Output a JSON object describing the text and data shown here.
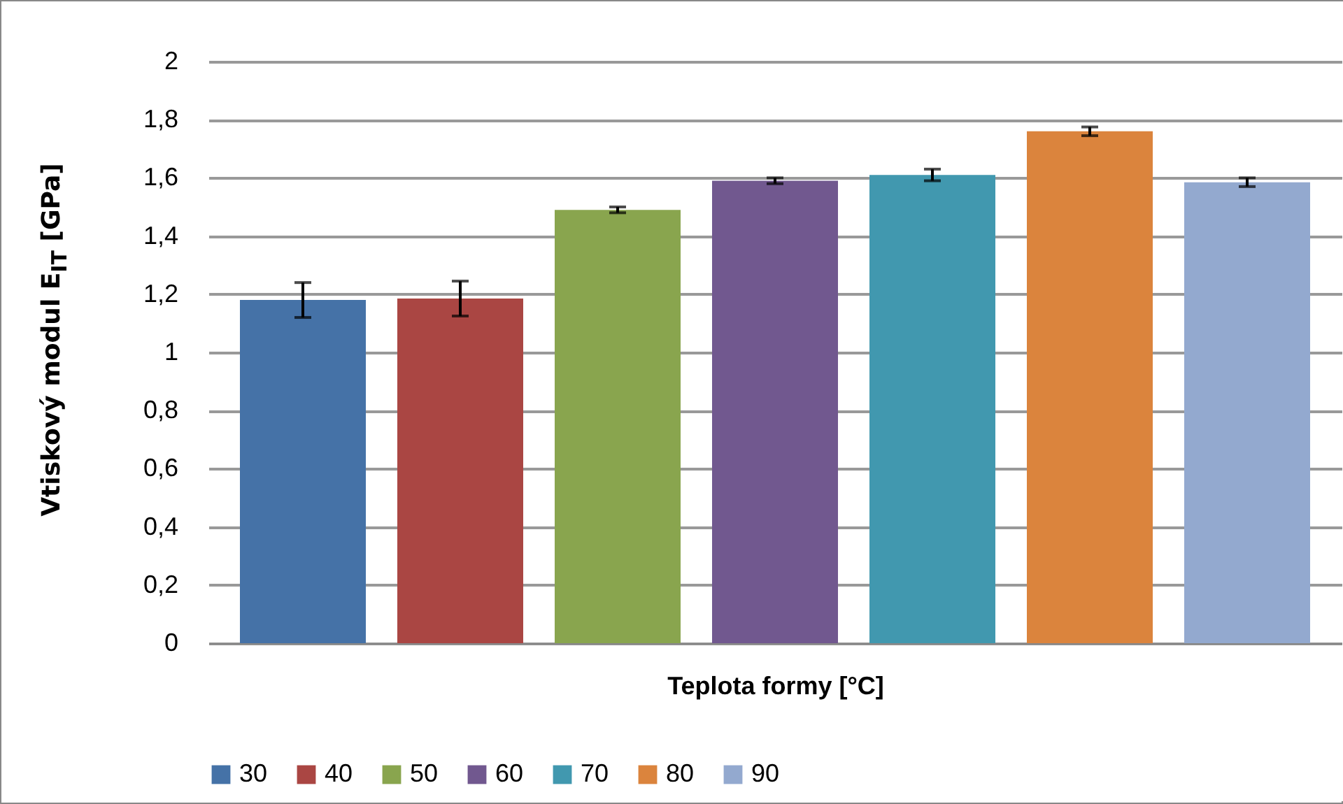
{
  "chart_data": {
    "type": "bar",
    "xlabel": "Teplota formy [°C]",
    "ylabel": "Vtiskový modul E$_{IT}$ [GPa]",
    "categories": [
      null
    ],
    "series": [
      {
        "name": "30",
        "color": "#4572a7",
        "values": [
          1.18
        ],
        "errors": [
          0.06
        ]
      },
      {
        "name": "40",
        "color": "#aa4643",
        "values": [
          1.185
        ],
        "errors": [
          0.06
        ]
      },
      {
        "name": "50",
        "color": "#89a54e",
        "values": [
          1.49
        ],
        "errors": [
          0.01
        ]
      },
      {
        "name": "60",
        "color": "#71588f",
        "values": [
          1.59
        ],
        "errors": [
          0.01
        ]
      },
      {
        "name": "70",
        "color": "#4198af",
        "values": [
          1.61
        ],
        "errors": [
          0.02
        ]
      },
      {
        "name": "80",
        "color": "#db843d",
        "values": [
          1.76
        ],
        "errors": [
          0.015
        ]
      },
      {
        "name": "90",
        "color": "#93a9cf",
        "values": [
          1.585
        ],
        "errors": [
          0.015
        ]
      }
    ],
    "ylim": [
      0,
      2
    ],
    "yticks": [
      0,
      {
        "value": 0.2,
        "label": "0,2"
      },
      {
        "value": 0.4,
        "label": "0,4"
      },
      {
        "value": 0.6,
        "label": "0,6"
      },
      {
        "value": 0.8,
        "label": "0,8"
      },
      1,
      {
        "value": 1.2,
        "label": "1,2"
      },
      {
        "value": 1.4,
        "label": "1,4"
      },
      {
        "value": 1.6,
        "label": "1,6"
      },
      {
        "value": 1.8,
        "label": "1,8"
      },
      2
    ],
    "grid": "y",
    "legend": "bottom",
    "tick_labels": "y"
  }
}
